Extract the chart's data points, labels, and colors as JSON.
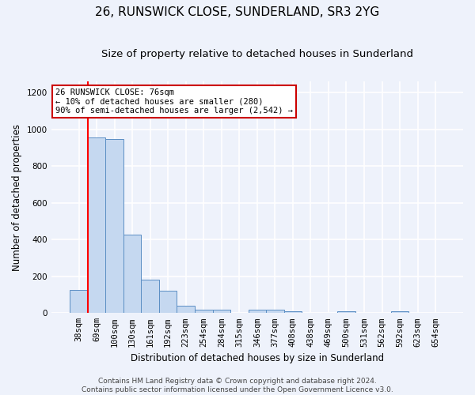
{
  "title": "26, RUNSWICK CLOSE, SUNDERLAND, SR3 2YG",
  "subtitle": "Size of property relative to detached houses in Sunderland",
  "xlabel": "Distribution of detached houses by size in Sunderland",
  "ylabel": "Number of detached properties",
  "categories": [
    "38sqm",
    "69sqm",
    "100sqm",
    "130sqm",
    "161sqm",
    "192sqm",
    "223sqm",
    "254sqm",
    "284sqm",
    "315sqm",
    "346sqm",
    "377sqm",
    "408sqm",
    "438sqm",
    "469sqm",
    "500sqm",
    "531sqm",
    "562sqm",
    "592sqm",
    "623sqm",
    "654sqm"
  ],
  "values": [
    125,
    955,
    948,
    428,
    183,
    120,
    42,
    20,
    20,
    0,
    18,
    18,
    10,
    0,
    0,
    8,
    0,
    0,
    10,
    0,
    0
  ],
  "bar_color": "#c5d8f0",
  "bar_edge_color": "#5b8ec4",
  "red_line_x": 0.5,
  "annotation_text": "26 RUNSWICK CLOSE: 76sqm\n← 10% of detached houses are smaller (280)\n90% of semi-detached houses are larger (2,542) →",
  "annotation_box_facecolor": "#ffffff",
  "annotation_box_edgecolor": "#cc0000",
  "ylim": [
    0,
    1260
  ],
  "yticks": [
    0,
    200,
    400,
    600,
    800,
    1000,
    1200
  ],
  "background_color": "#eef2fb",
  "grid_color": "#ffffff",
  "title_fontsize": 11,
  "subtitle_fontsize": 9.5,
  "xlabel_fontsize": 8.5,
  "ylabel_fontsize": 8.5,
  "tick_fontsize": 7.5,
  "annotation_fontsize": 7.5,
  "footer_fontsize": 6.5,
  "footer_line1": "Contains HM Land Registry data © Crown copyright and database right 2024.",
  "footer_line2": "Contains public sector information licensed under the Open Government Licence v3.0."
}
